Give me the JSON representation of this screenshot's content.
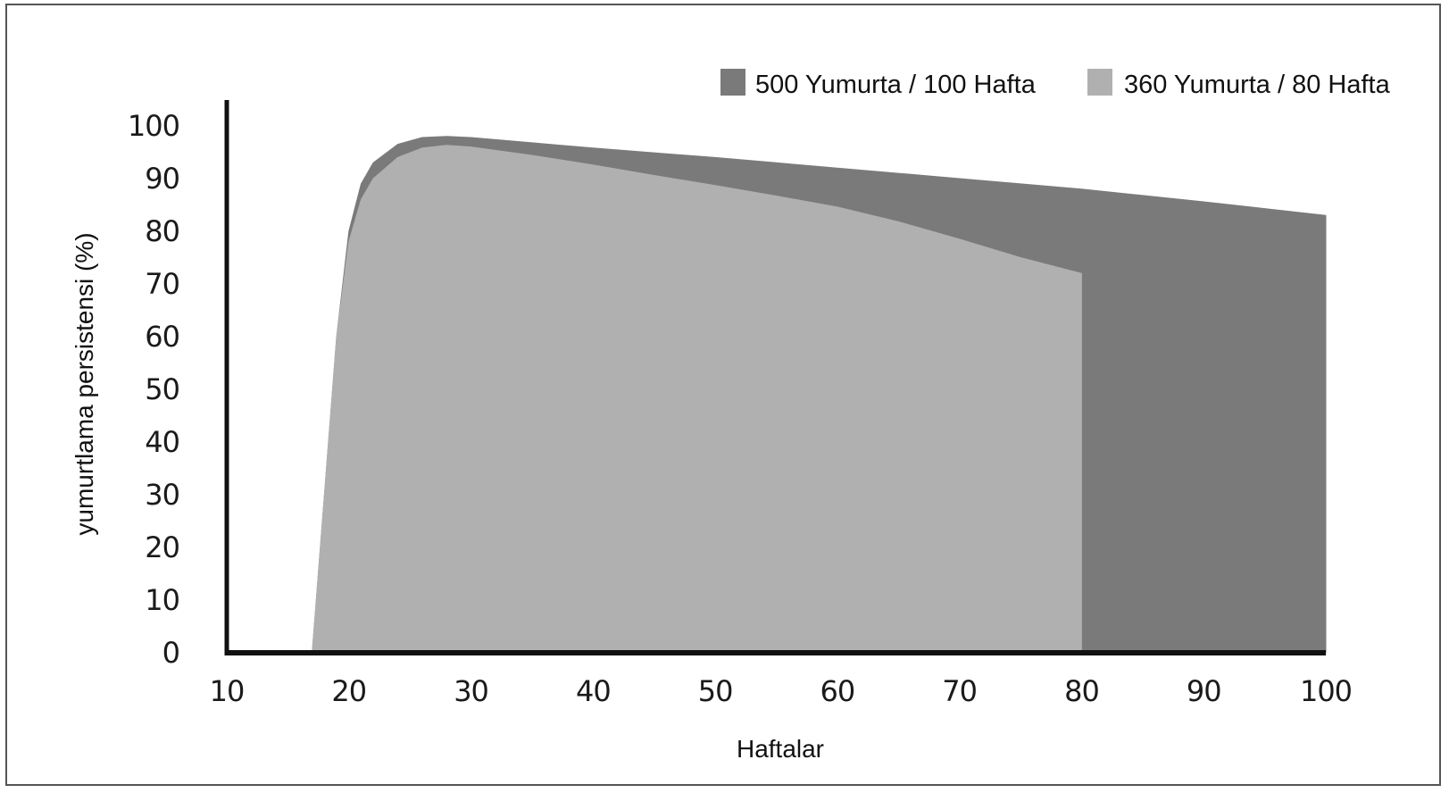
{
  "chart_data": {
    "type": "area",
    "xlabel": "Haftalar",
    "ylabel": "yumurtlama persistensi (%)",
    "xlim": [
      10,
      100
    ],
    "ylim": [
      0,
      100
    ],
    "x_ticks": [
      10,
      20,
      30,
      40,
      50,
      60,
      70,
      80,
      90,
      100
    ],
    "y_ticks": [
      0,
      10,
      20,
      30,
      40,
      50,
      60,
      70,
      80,
      90,
      100
    ],
    "legend_position": "top-right",
    "series": [
      {
        "name": "500 Yumurta / 100 Hafta",
        "color": "#7a7a7a",
        "x": [
          17,
          19,
          20,
          21,
          22,
          24,
          26,
          28,
          30,
          35,
          40,
          45,
          50,
          55,
          60,
          65,
          70,
          75,
          80,
          85,
          90,
          95,
          100
        ],
        "y": [
          0,
          60,
          80,
          89,
          93,
          96.5,
          97.8,
          98,
          97.8,
          96.8,
          95.8,
          94.9,
          94,
          93,
          92,
          91,
          90,
          89,
          88,
          86.8,
          85.6,
          84.3,
          83
        ]
      },
      {
        "name": "360 Yumurta / 80 Hafta",
        "color": "#b0b0b0",
        "x": [
          17,
          19,
          20,
          21,
          22,
          24,
          26,
          28,
          30,
          35,
          40,
          45,
          50,
          55,
          60,
          65,
          70,
          75,
          80
        ],
        "y": [
          0,
          60,
          78,
          86,
          90,
          94,
          95.8,
          96.3,
          96,
          94.4,
          92.6,
          90.6,
          88.7,
          86.7,
          84.6,
          81.8,
          78.5,
          75,
          72
        ]
      }
    ]
  }
}
